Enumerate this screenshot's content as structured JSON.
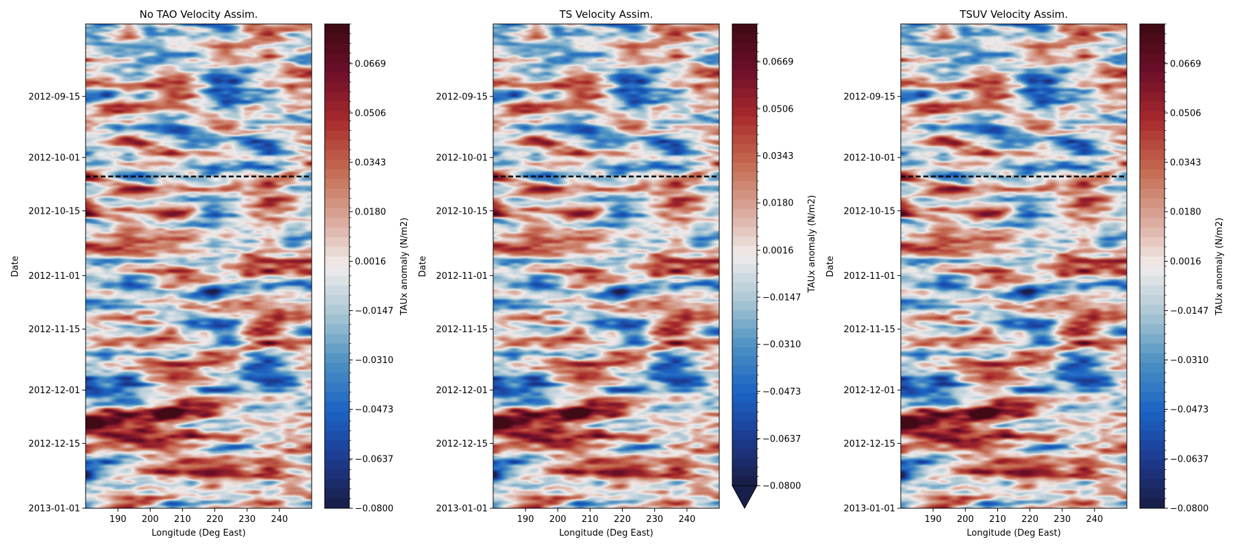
{
  "colormap": {
    "name": "balance",
    "stops": [
      "#181c43",
      "#1d3a8f",
      "#1b63c4",
      "#4b8fc2",
      "#a9c6d4",
      "#f1ecec",
      "#d8a596",
      "#c4694f",
      "#a82a2c",
      "#6d0f2a",
      "#3c0912"
    ]
  },
  "chart_data": [
    {
      "type": "heatmap",
      "title": "No TAO Velocity Assim.",
      "xlabel": "Longitude (Deg East)",
      "ylabel": "Date",
      "colorbar_label": "TAUx anomaly (N/m2)",
      "x_range": [
        180,
        250
      ],
      "x_ticks": [
        "190",
        "200",
        "210",
        "220",
        "230",
        "240"
      ],
      "y_range": [
        "2012-08-27",
        "2013-01-01"
      ],
      "y_ticks": [
        "2012-09-15",
        "2012-10-01",
        "2012-10-15",
        "2012-11-01",
        "2012-11-15",
        "2012-12-01",
        "2012-12-15",
        "2013-01-01"
      ],
      "value_range": [
        -0.08,
        0.08
      ],
      "colorbar_ticks": [
        "−0.0800",
        "−0.0637",
        "−0.0473",
        "−0.0310",
        "−0.0147",
        "0.0016",
        "0.0180",
        "0.0343",
        "0.0506",
        "0.0669"
      ],
      "colorbar_extend": "none",
      "dashed_line_date": "2012-10-06",
      "seed": 11
    },
    {
      "type": "heatmap",
      "title": "TS Velocity Assim.",
      "xlabel": "Longitude (Deg East)",
      "ylabel": "Date",
      "colorbar_label": "TAUx anomaly (N/m2)",
      "x_range": [
        180,
        250
      ],
      "x_ticks": [
        "190",
        "200",
        "210",
        "220",
        "230",
        "240"
      ],
      "y_range": [
        "2012-08-27",
        "2013-01-01"
      ],
      "y_ticks": [
        "2012-09-15",
        "2012-10-01",
        "2012-10-15",
        "2012-11-01",
        "2012-11-15",
        "2012-12-01",
        "2012-12-15",
        "2013-01-01"
      ],
      "value_range": [
        -0.08,
        0.08
      ],
      "colorbar_ticks": [
        "−0.0800",
        "−0.0637",
        "−0.0473",
        "−0.0310",
        "−0.0147",
        "0.0016",
        "0.0180",
        "0.0343",
        "0.0506",
        "0.0669"
      ],
      "colorbar_extend": "min",
      "dashed_line_date": "2012-10-06",
      "seed": 11
    },
    {
      "type": "heatmap",
      "title": "TSUV Velocity Assim.",
      "xlabel": "Longitude (Deg East)",
      "ylabel": "Date",
      "colorbar_label": "TAUx anomaly (N/m2)",
      "x_range": [
        180,
        250
      ],
      "x_ticks": [
        "190",
        "200",
        "210",
        "220",
        "230",
        "240"
      ],
      "y_range": [
        "2012-08-27",
        "2013-01-01"
      ],
      "y_ticks": [
        "2012-09-15",
        "2012-10-01",
        "2012-10-15",
        "2012-11-01",
        "2012-11-15",
        "2012-12-01",
        "2012-12-15",
        "2013-01-01"
      ],
      "value_range": [
        -0.08,
        0.08
      ],
      "colorbar_ticks": [
        "−0.0800",
        "−0.0637",
        "−0.0473",
        "−0.0310",
        "−0.0147",
        "0.0016",
        "0.0180",
        "0.0343",
        "0.0506",
        "0.0669"
      ],
      "colorbar_extend": "none",
      "dashed_line_date": "2012-10-06",
      "seed": 11
    }
  ]
}
